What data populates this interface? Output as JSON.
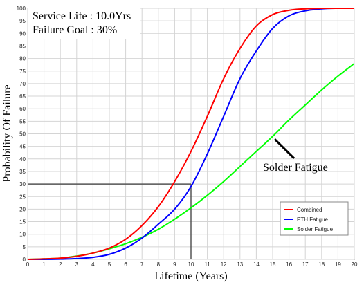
{
  "chart_data": {
    "type": "line",
    "title": "",
    "xlabel": "Lifetime (Years)",
    "ylabel": "Probability Of Failure",
    "xlim": [
      0,
      20
    ],
    "ylim": [
      0,
      100
    ],
    "x_ticks": [
      0,
      1,
      2,
      3,
      4,
      5,
      6,
      7,
      8,
      9,
      10,
      11,
      12,
      13,
      14,
      15,
      16,
      17,
      18,
      19,
      20
    ],
    "y_ticks": [
      0,
      5,
      10,
      15,
      20,
      25,
      30,
      35,
      40,
      45,
      50,
      55,
      60,
      65,
      70,
      75,
      80,
      85,
      90,
      95,
      100
    ],
    "grid": true,
    "legend_position": "bottom-right",
    "annotations": [
      {
        "text": "Service Life : 10.0Yrs"
      },
      {
        "text": "Failure Goal : 30%"
      },
      {
        "text": "Solder Fatigue",
        "points_to_series": "Solder Fatigue",
        "at_x": 15.0
      }
    ],
    "reference_lines": {
      "service_life_x": 10.0,
      "failure_goal_y": 30
    },
    "x": [
      0,
      1,
      2,
      3,
      4,
      5,
      6,
      7,
      8,
      9,
      10,
      11,
      12,
      13,
      14,
      15,
      16,
      17,
      18,
      19,
      20
    ],
    "series": [
      {
        "name": "Combined",
        "color": "#ff0000",
        "values": [
          0,
          0.2,
          0.5,
          1.2,
          2.5,
          4.5,
          8,
          13.5,
          21,
          31,
          43,
          57,
          72,
          84,
          93,
          97.5,
          99.2,
          99.8,
          100,
          100,
          100
        ]
      },
      {
        "name": "PTH Fatigue",
        "color": "#0000ff",
        "values": [
          0,
          0,
          0.1,
          0.3,
          0.8,
          2,
          4.5,
          8.5,
          14,
          20,
          29,
          42,
          57,
          72,
          83,
          92,
          97,
          99,
          99.8,
          100,
          100
        ]
      },
      {
        "name": "Solder Fatigue",
        "color": "#00ff00",
        "values": [
          0,
          0.2,
          0.5,
          1.3,
          2.5,
          4.2,
          6.2,
          8.8,
          12,
          16,
          20.5,
          25.5,
          31,
          37,
          43,
          49,
          55.5,
          61.5,
          67.5,
          73,
          78
        ]
      }
    ]
  }
}
